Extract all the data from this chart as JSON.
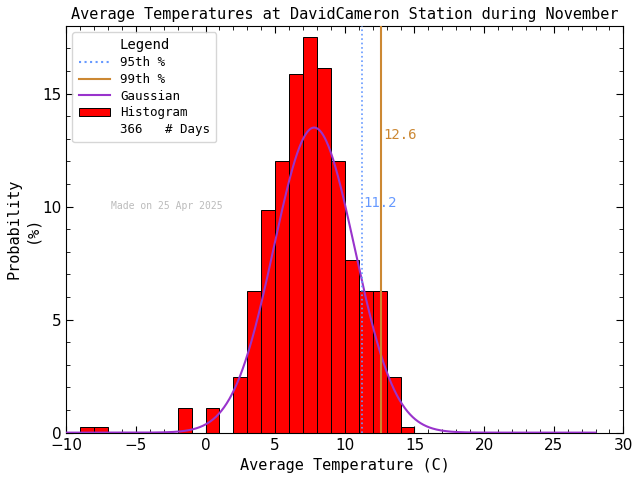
{
  "title": "Average Temperatures at DavidCameron Station during November",
  "xlabel": "Average Temperature (C)",
  "ylabel": "Probability\n(%)",
  "xlim": [
    -10,
    30
  ],
  "ylim": [
    0,
    18
  ],
  "yticks": [
    0,
    5,
    10,
    15
  ],
  "xticks": [
    -10,
    -5,
    0,
    5,
    10,
    15,
    20,
    25,
    30
  ],
  "bin_left_edges": [
    -9,
    -8,
    -2,
    -1,
    0,
    2,
    3,
    4,
    5,
    6,
    7,
    8,
    9,
    10,
    11,
    12,
    13,
    14
  ],
  "bar_heights": [
    0.27,
    0.27,
    1.09,
    0.0,
    1.09,
    2.46,
    6.28,
    9.84,
    12.02,
    15.85,
    17.49,
    16.12,
    12.02,
    7.65,
    6.28,
    6.28,
    2.46,
    0.27
  ],
  "bar_color": "#ff0000",
  "bar_edgecolor": "#000000",
  "gaussian_color": "#9933cc",
  "gaussian_mu": 7.8,
  "gaussian_sigma": 2.9,
  "gaussian_amplitude": 13.5,
  "pct95_x": 11.2,
  "pct95_color": "#6699ff",
  "pct99_x": 12.6,
  "pct99_color": "#cc8833",
  "pct95_label": "11.2",
  "pct99_label": "12.6",
  "n_days": 366,
  "watermark": "Made on 25 Apr 2025",
  "watermark_color": "#bbbbbb",
  "bg_color": "#ffffff",
  "legend_items": [
    "95th %",
    "99th %",
    "Gaussian",
    "Histogram",
    "366   # Days"
  ]
}
